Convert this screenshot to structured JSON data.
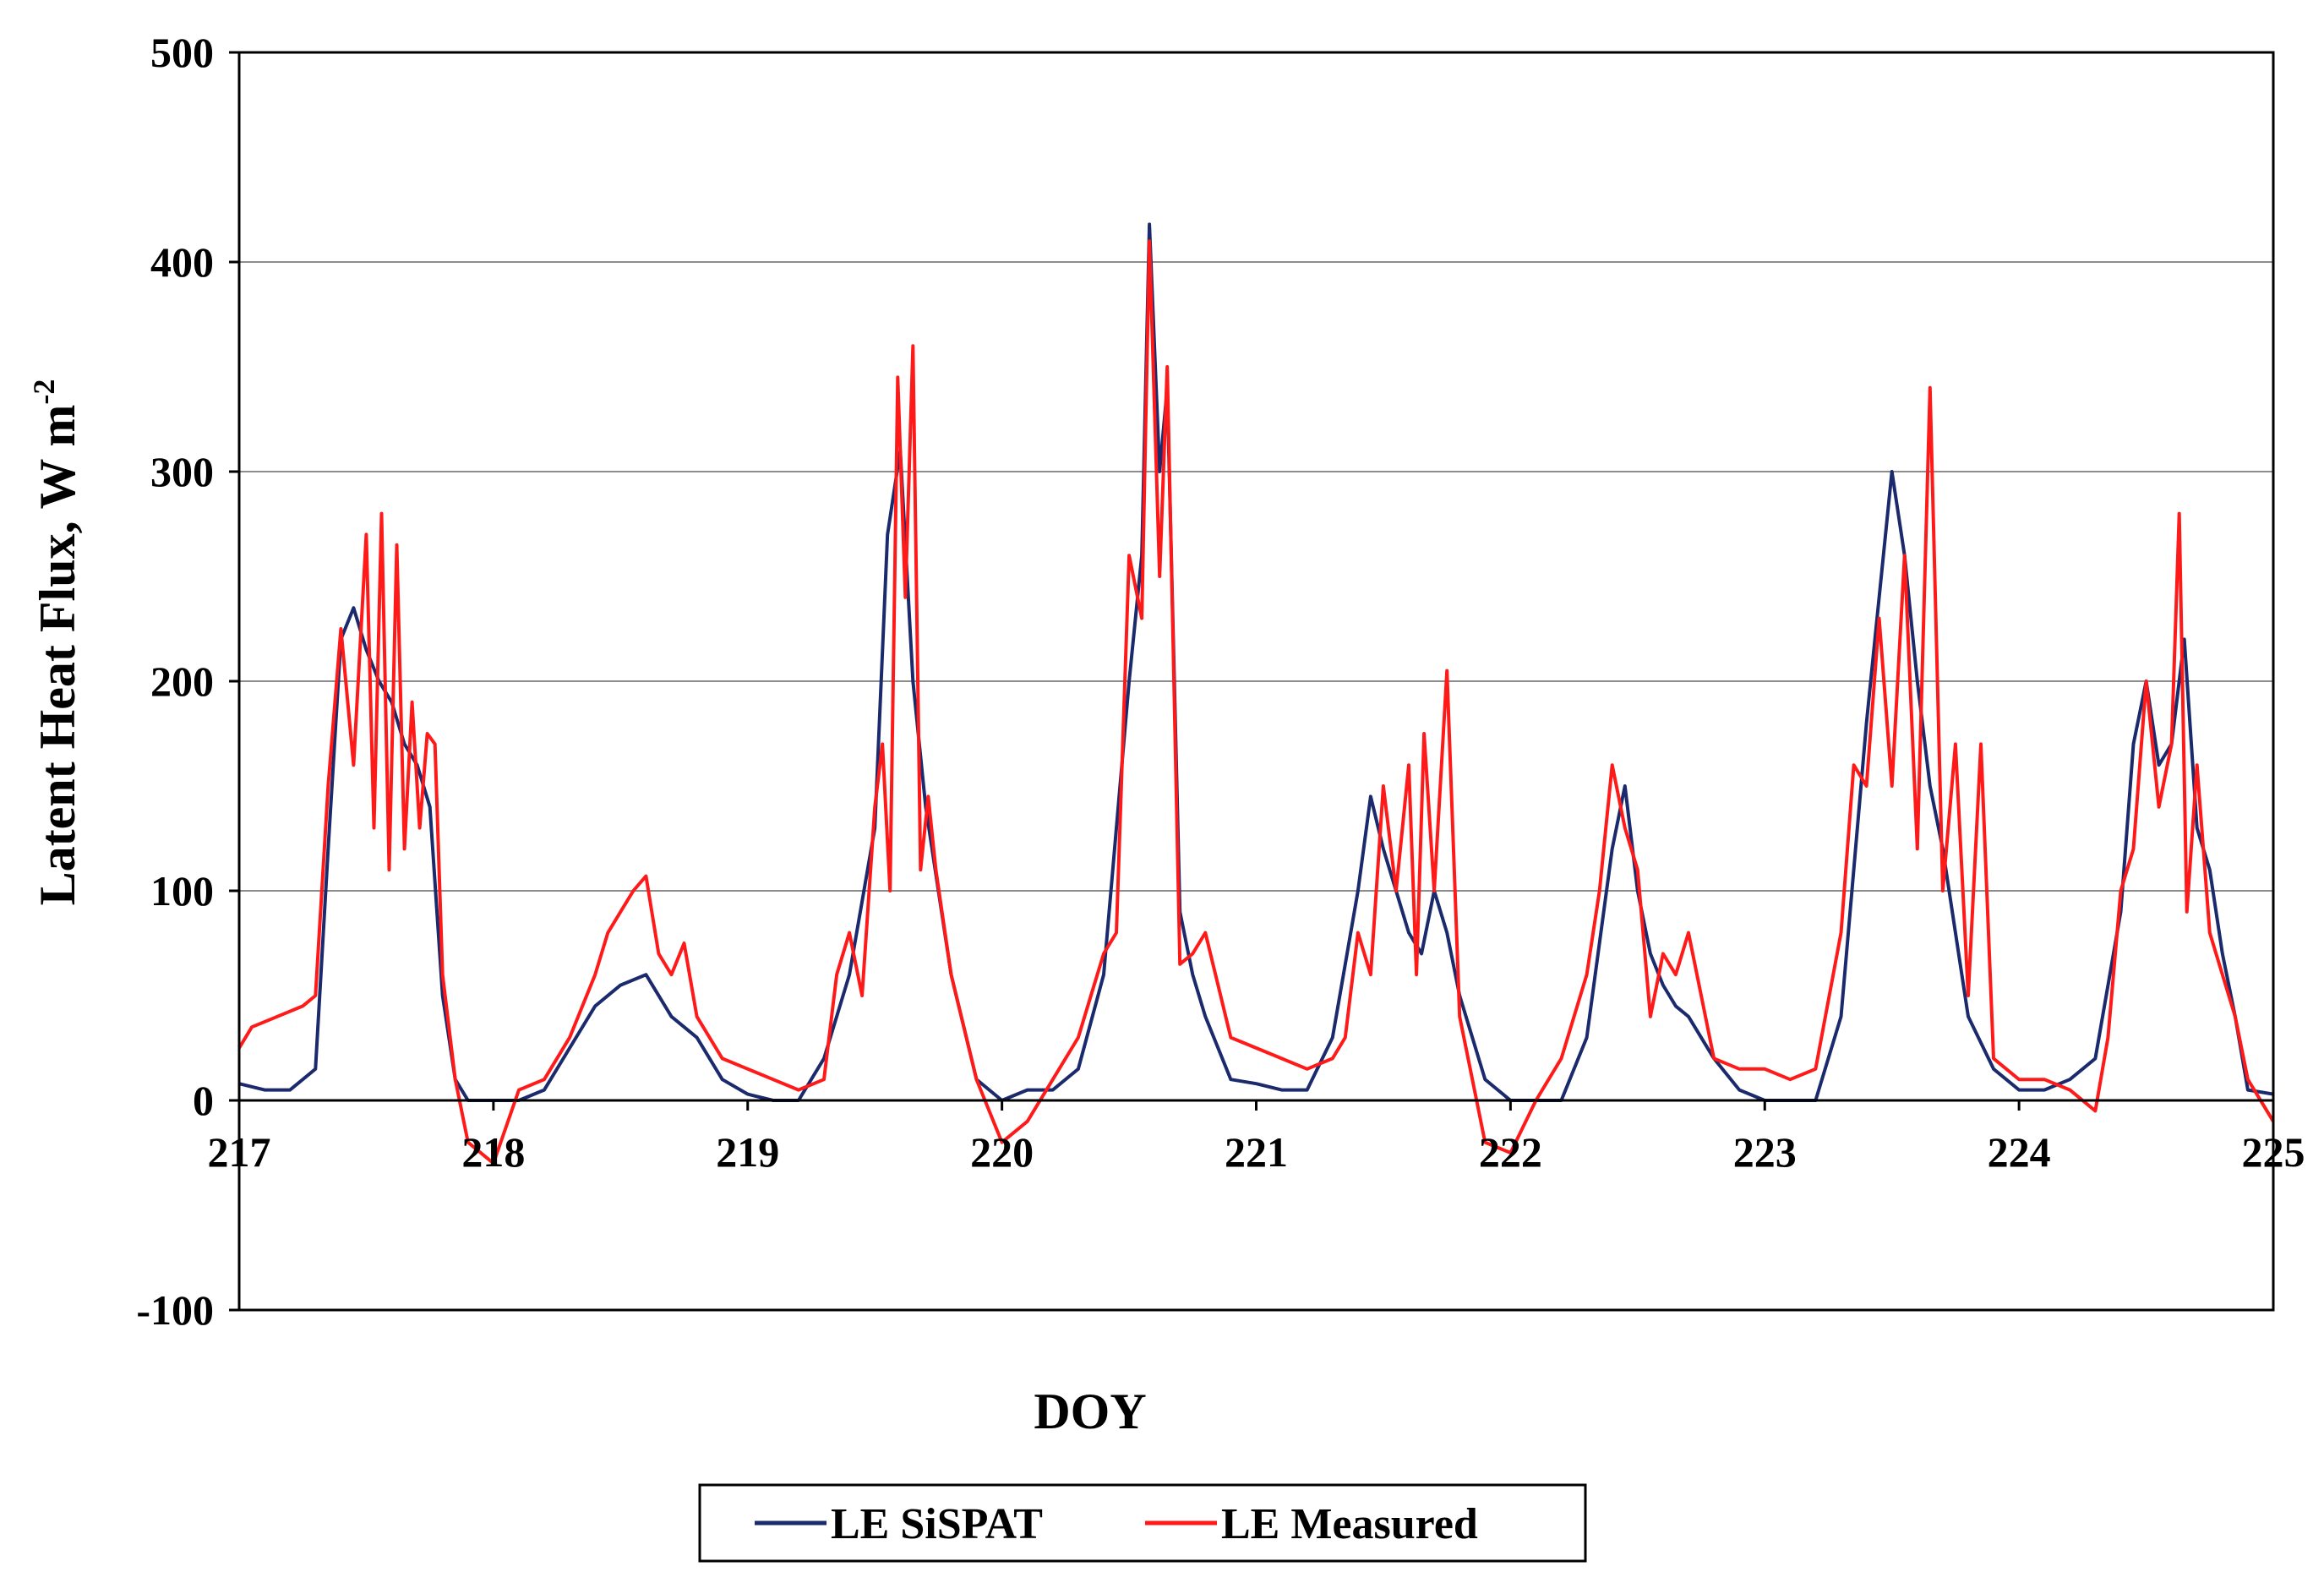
{
  "chart_data": {
    "type": "line",
    "title": "",
    "xlabel": "DOY",
    "ylabel_main": "Latent Heat Flux, W m",
    "ylabel_sup": "-2",
    "xlim": [
      217,
      225
    ],
    "ylim": [
      -100,
      500
    ],
    "xticks": [
      "217",
      "218",
      "219",
      "220",
      "221",
      "222",
      "223",
      "224",
      "225"
    ],
    "yticks": [
      "-100",
      "0",
      "100",
      "200",
      "300",
      "400",
      "500"
    ],
    "gridlines": "horizontal",
    "legend_position": "bottom-center",
    "series": [
      {
        "name": "LE SiSPAT",
        "color": "#1a2a6c",
        "x": [
          217.0,
          217.1,
          217.2,
          217.3,
          217.35,
          217.4,
          217.45,
          217.5,
          217.55,
          217.6,
          217.65,
          217.7,
          217.75,
          217.8,
          217.85,
          217.9,
          218.0,
          218.1,
          218.2,
          218.3,
          218.4,
          218.5,
          218.6,
          218.7,
          218.8,
          218.9,
          219.0,
          219.1,
          219.2,
          219.3,
          219.4,
          219.5,
          219.55,
          219.6,
          219.65,
          219.7,
          219.75,
          219.8,
          219.9,
          220.0,
          220.1,
          220.2,
          220.3,
          220.4,
          220.5,
          220.55,
          220.58,
          220.62,
          220.65,
          220.7,
          220.75,
          220.8,
          220.9,
          221.0,
          221.1,
          221.2,
          221.3,
          221.4,
          221.45,
          221.5,
          221.55,
          221.6,
          221.65,
          221.7,
          221.75,
          221.8,
          221.9,
          222.0,
          222.1,
          222.2,
          222.3,
          222.4,
          222.45,
          222.5,
          222.55,
          222.6,
          222.65,
          222.7,
          222.8,
          222.9,
          223.0,
          223.1,
          223.2,
          223.3,
          223.4,
          223.45,
          223.5,
          223.55,
          223.6,
          223.65,
          223.7,
          223.75,
          223.8,
          223.9,
          224.0,
          224.1,
          224.2,
          224.3,
          224.4,
          224.45,
          224.5,
          224.55,
          224.6,
          224.65,
          224.7,
          224.75,
          224.8,
          224.85,
          224.9,
          225.0
        ],
        "values": [
          8,
          5,
          5,
          15,
          120,
          220,
          235,
          215,
          200,
          190,
          170,
          160,
          140,
          50,
          10,
          0,
          0,
          0,
          5,
          25,
          45,
          55,
          60,
          40,
          30,
          10,
          3,
          0,
          0,
          20,
          60,
          130,
          270,
          310,
          200,
          140,
          100,
          60,
          10,
          0,
          5,
          5,
          15,
          60,
          200,
          260,
          418,
          300,
          340,
          90,
          60,
          40,
          10,
          8,
          5,
          5,
          30,
          100,
          145,
          120,
          100,
          80,
          70,
          100,
          80,
          50,
          10,
          0,
          0,
          0,
          30,
          120,
          150,
          100,
          70,
          55,
          45,
          40,
          20,
          5,
          0,
          0,
          0,
          40,
          180,
          240,
          300,
          260,
          200,
          150,
          120,
          80,
          40,
          15,
          5,
          5,
          10,
          20,
          90,
          170,
          200,
          160,
          170,
          220,
          130,
          110,
          70,
          40,
          5,
          3
        ]
      },
      {
        "name": "LE Measured",
        "color": "#ff1a1a",
        "x": [
          217.0,
          217.05,
          217.15,
          217.25,
          217.3,
          217.35,
          217.4,
          217.45,
          217.5,
          217.53,
          217.56,
          217.59,
          217.62,
          217.65,
          217.68,
          217.71,
          217.74,
          217.77,
          217.8,
          217.85,
          217.9,
          218.0,
          218.1,
          218.2,
          218.3,
          218.4,
          218.45,
          218.5,
          218.55,
          218.6,
          218.65,
          218.7,
          218.75,
          218.8,
          218.9,
          219.0,
          219.1,
          219.2,
          219.3,
          219.35,
          219.4,
          219.45,
          219.5,
          219.53,
          219.56,
          219.59,
          219.62,
          219.65,
          219.68,
          219.71,
          219.74,
          219.8,
          219.9,
          220.0,
          220.1,
          220.2,
          220.3,
          220.35,
          220.4,
          220.45,
          220.5,
          220.55,
          220.58,
          220.62,
          220.65,
          220.7,
          220.75,
          220.8,
          220.9,
          221.0,
          221.1,
          221.2,
          221.3,
          221.35,
          221.4,
          221.45,
          221.5,
          221.55,
          221.6,
          221.63,
          221.66,
          221.7,
          221.75,
          221.8,
          221.9,
          222.0,
          222.1,
          222.2,
          222.3,
          222.35,
          222.4,
          222.45,
          222.5,
          222.55,
          222.6,
          222.65,
          222.7,
          222.8,
          222.9,
          223.0,
          223.1,
          223.2,
          223.3,
          223.35,
          223.4,
          223.45,
          223.5,
          223.55,
          223.6,
          223.65,
          223.7,
          223.75,
          223.8,
          223.85,
          223.9,
          224.0,
          224.1,
          224.2,
          224.3,
          224.35,
          224.4,
          224.45,
          224.5,
          224.55,
          224.6,
          224.63,
          224.66,
          224.7,
          224.75,
          224.8,
          224.85,
          224.9,
          225.0
        ],
        "values": [
          25,
          35,
          40,
          45,
          50,
          150,
          225,
          160,
          270,
          130,
          280,
          110,
          265,
          120,
          190,
          130,
          175,
          170,
          60,
          10,
          -20,
          -30,
          5,
          10,
          30,
          60,
          80,
          90,
          100,
          107,
          70,
          60,
          75,
          40,
          20,
          15,
          10,
          5,
          10,
          60,
          80,
          50,
          140,
          170,
          100,
          345,
          240,
          360,
          110,
          145,
          110,
          60,
          10,
          -20,
          -10,
          10,
          30,
          50,
          70,
          80,
          260,
          230,
          410,
          250,
          350,
          65,
          70,
          80,
          30,
          25,
          20,
          15,
          20,
          30,
          80,
          60,
          150,
          100,
          160,
          60,
          175,
          100,
          205,
          40,
          -20,
          -25,
          0,
          20,
          60,
          100,
          160,
          130,
          110,
          40,
          70,
          60,
          80,
          20,
          15,
          15,
          10,
          15,
          80,
          160,
          150,
          230,
          150,
          260,
          120,
          340,
          100,
          170,
          50,
          170,
          20,
          10,
          10,
          5,
          -5,
          30,
          100,
          120,
          200,
          140,
          170,
          280,
          90,
          160,
          80,
          60,
          40,
          10,
          -10
        ]
      }
    ]
  }
}
